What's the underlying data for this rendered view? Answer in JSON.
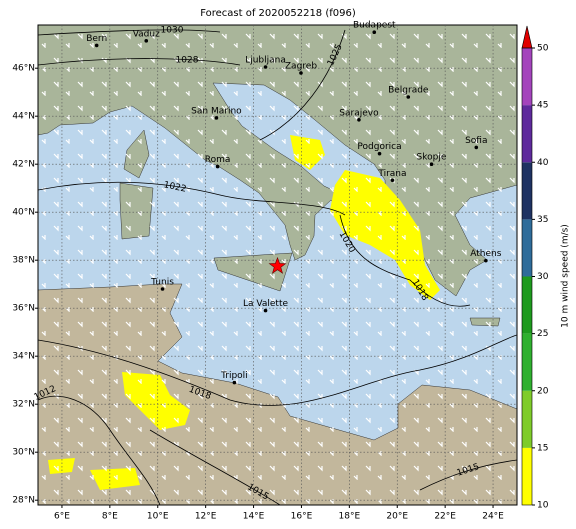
{
  "chart_data": {
    "type": "map",
    "title": "Forecast of 2020052218 (f096)",
    "xlim": [
      5,
      25
    ],
    "ylim": [
      27.8,
      47.8
    ],
    "xticks": [
      {
        "value": 6,
        "label": "6°E"
      },
      {
        "value": 8,
        "label": "8°E"
      },
      {
        "value": 10,
        "label": "10°E"
      },
      {
        "value": 12,
        "label": "12°E"
      },
      {
        "value": 14,
        "label": "14°E"
      },
      {
        "value": 16,
        "label": "16°E"
      },
      {
        "value": 18,
        "label": "18°E"
      },
      {
        "value": 20,
        "label": "20°E"
      },
      {
        "value": 22,
        "label": "22°E"
      },
      {
        "value": 24,
        "label": "24°E"
      }
    ],
    "yticks": [
      {
        "value": 28,
        "label": "28°N"
      },
      {
        "value": 30,
        "label": "30°N"
      },
      {
        "value": 32,
        "label": "32°N"
      },
      {
        "value": 34,
        "label": "34°N"
      },
      {
        "value": 36,
        "label": "36°N"
      },
      {
        "value": 38,
        "label": "38°N"
      },
      {
        "value": 40,
        "label": "40°N"
      },
      {
        "value": 42,
        "label": "42°N"
      },
      {
        "value": 44,
        "label": "44°N"
      },
      {
        "value": 46,
        "label": "46°N"
      }
    ],
    "grid": true,
    "cities": [
      {
        "name": "Bern",
        "lon": 7.45,
        "lat": 46.95
      },
      {
        "name": "Vaduz",
        "lon": 9.52,
        "lat": 47.14
      },
      {
        "name": "Budapest",
        "lon": 19.04,
        "lat": 47.5
      },
      {
        "name": "Ljubljana",
        "lon": 14.5,
        "lat": 46.05
      },
      {
        "name": "Zagreb",
        "lon": 15.98,
        "lat": 45.8
      },
      {
        "name": "Belgrade",
        "lon": 20.46,
        "lat": 44.8
      },
      {
        "name": "San Marino",
        "lon": 12.45,
        "lat": 43.93
      },
      {
        "name": "Sarajevo",
        "lon": 18.4,
        "lat": 43.85
      },
      {
        "name": "Sofia",
        "lon": 23.3,
        "lat": 42.7
      },
      {
        "name": "Podgorica",
        "lon": 19.26,
        "lat": 42.44
      },
      {
        "name": "Skopje",
        "lon": 21.43,
        "lat": 42.0
      },
      {
        "name": "Roma",
        "lon": 12.5,
        "lat": 41.9
      },
      {
        "name": "Tirana",
        "lon": 19.8,
        "lat": 41.33
      },
      {
        "name": "Athens",
        "lon": 23.7,
        "lat": 37.98
      },
      {
        "name": "Tunis",
        "lon": 10.2,
        "lat": 36.8
      },
      {
        "name": "La Valette",
        "lon": 14.5,
        "lat": 35.9
      },
      {
        "name": "Tripoli",
        "lon": 13.2,
        "lat": 32.9
      }
    ],
    "marker": {
      "lon": 15.0,
      "lat": 37.75,
      "color": "#ff0000"
    },
    "isobar_labels": [
      "1030",
      "1028",
      "1025",
      "1022",
      "1020",
      "1018",
      "1018",
      "1015",
      "1015",
      "1012"
    ],
    "colorbar": {
      "label": "10 m wind speed (m/s)",
      "ticks": [
        10,
        15,
        20,
        25,
        30,
        35,
        40,
        45,
        50
      ],
      "colors": [
        "#ffff00",
        "#7fcc2a",
        "#2fb02f",
        "#1e9a1e",
        "#2e6c9a",
        "#1e3262",
        "#5e2a9c",
        "#a444bc"
      ],
      "extend_color": "#e00000"
    }
  }
}
